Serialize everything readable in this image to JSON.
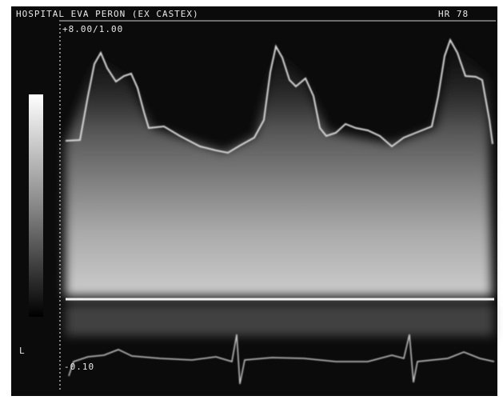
{
  "header": {
    "title": "HOSPITAL EVA PERON (EX CASTEX)",
    "rate": "HR 78"
  },
  "scale": {
    "top": "+8.00/1.00",
    "bottom": "-0.10"
  },
  "side_label": "L"
}
